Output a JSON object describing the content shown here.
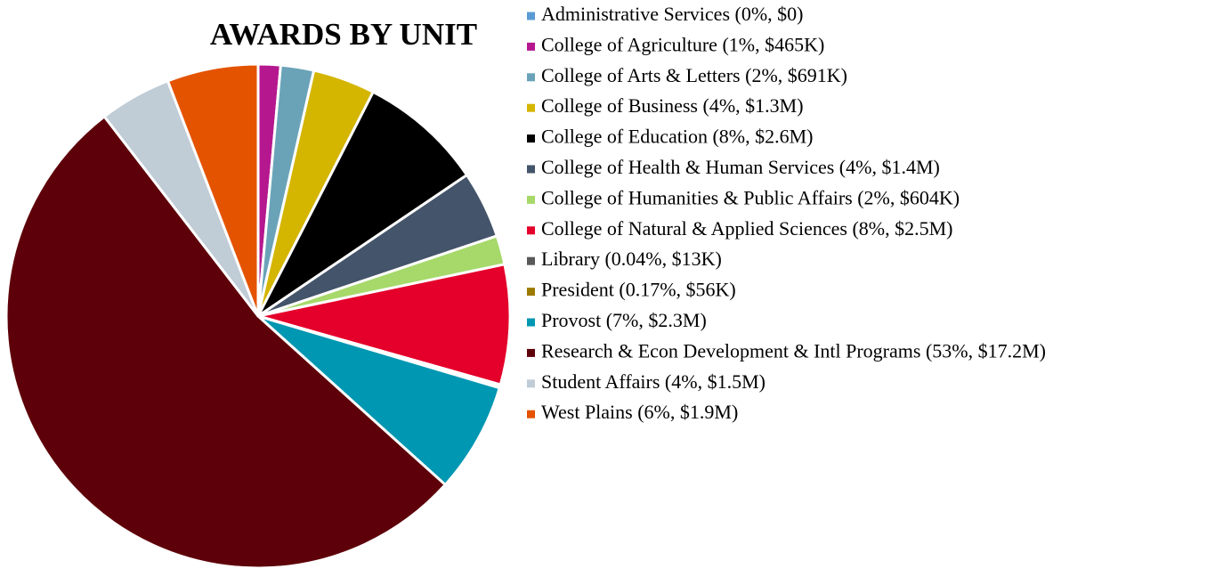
{
  "chart_data": {
    "type": "pie",
    "title": "AWARDS BY UNIT",
    "categories": [
      "Administrative Services (0%, $0)",
      "College of Agriculture (1%, $465K)",
      "College of Arts & Letters (2%, $691K)",
      "College of Business (4%, $1.3M)",
      "College of Education (8%, $2.6M)",
      "College of Health & Human Services (4%, $1.4M)",
      "College of Humanities & Public Affairs (2%, $604K)",
      "College of Natural & Applied Sciences (8%, $2.5M)",
      "Library (0.04%, $13K)",
      "President (0.17%, $56K)",
      "Provost (7%, $2.3M)",
      "Research & Econ Development & Intl Programs (53%, $17.2M)",
      "Student Affairs (4%, $1.5M)",
      "West Plains (6%, $1.9M)"
    ],
    "values": [
      0,
      465000,
      691000,
      1300000,
      2600000,
      1400000,
      604000,
      2500000,
      13000,
      56000,
      2300000,
      17200000,
      1500000,
      1900000
    ],
    "colors": [
      "#5b9bd5",
      "#b5178f",
      "#6aa3b8",
      "#d4b500",
      "#000000",
      "#44546a",
      "#a6d96a",
      "#e4002b",
      "#595959",
      "#9c7a00",
      "#0097b2",
      "#5e0009",
      "#c0ccd6",
      "#e45300"
    ]
  }
}
